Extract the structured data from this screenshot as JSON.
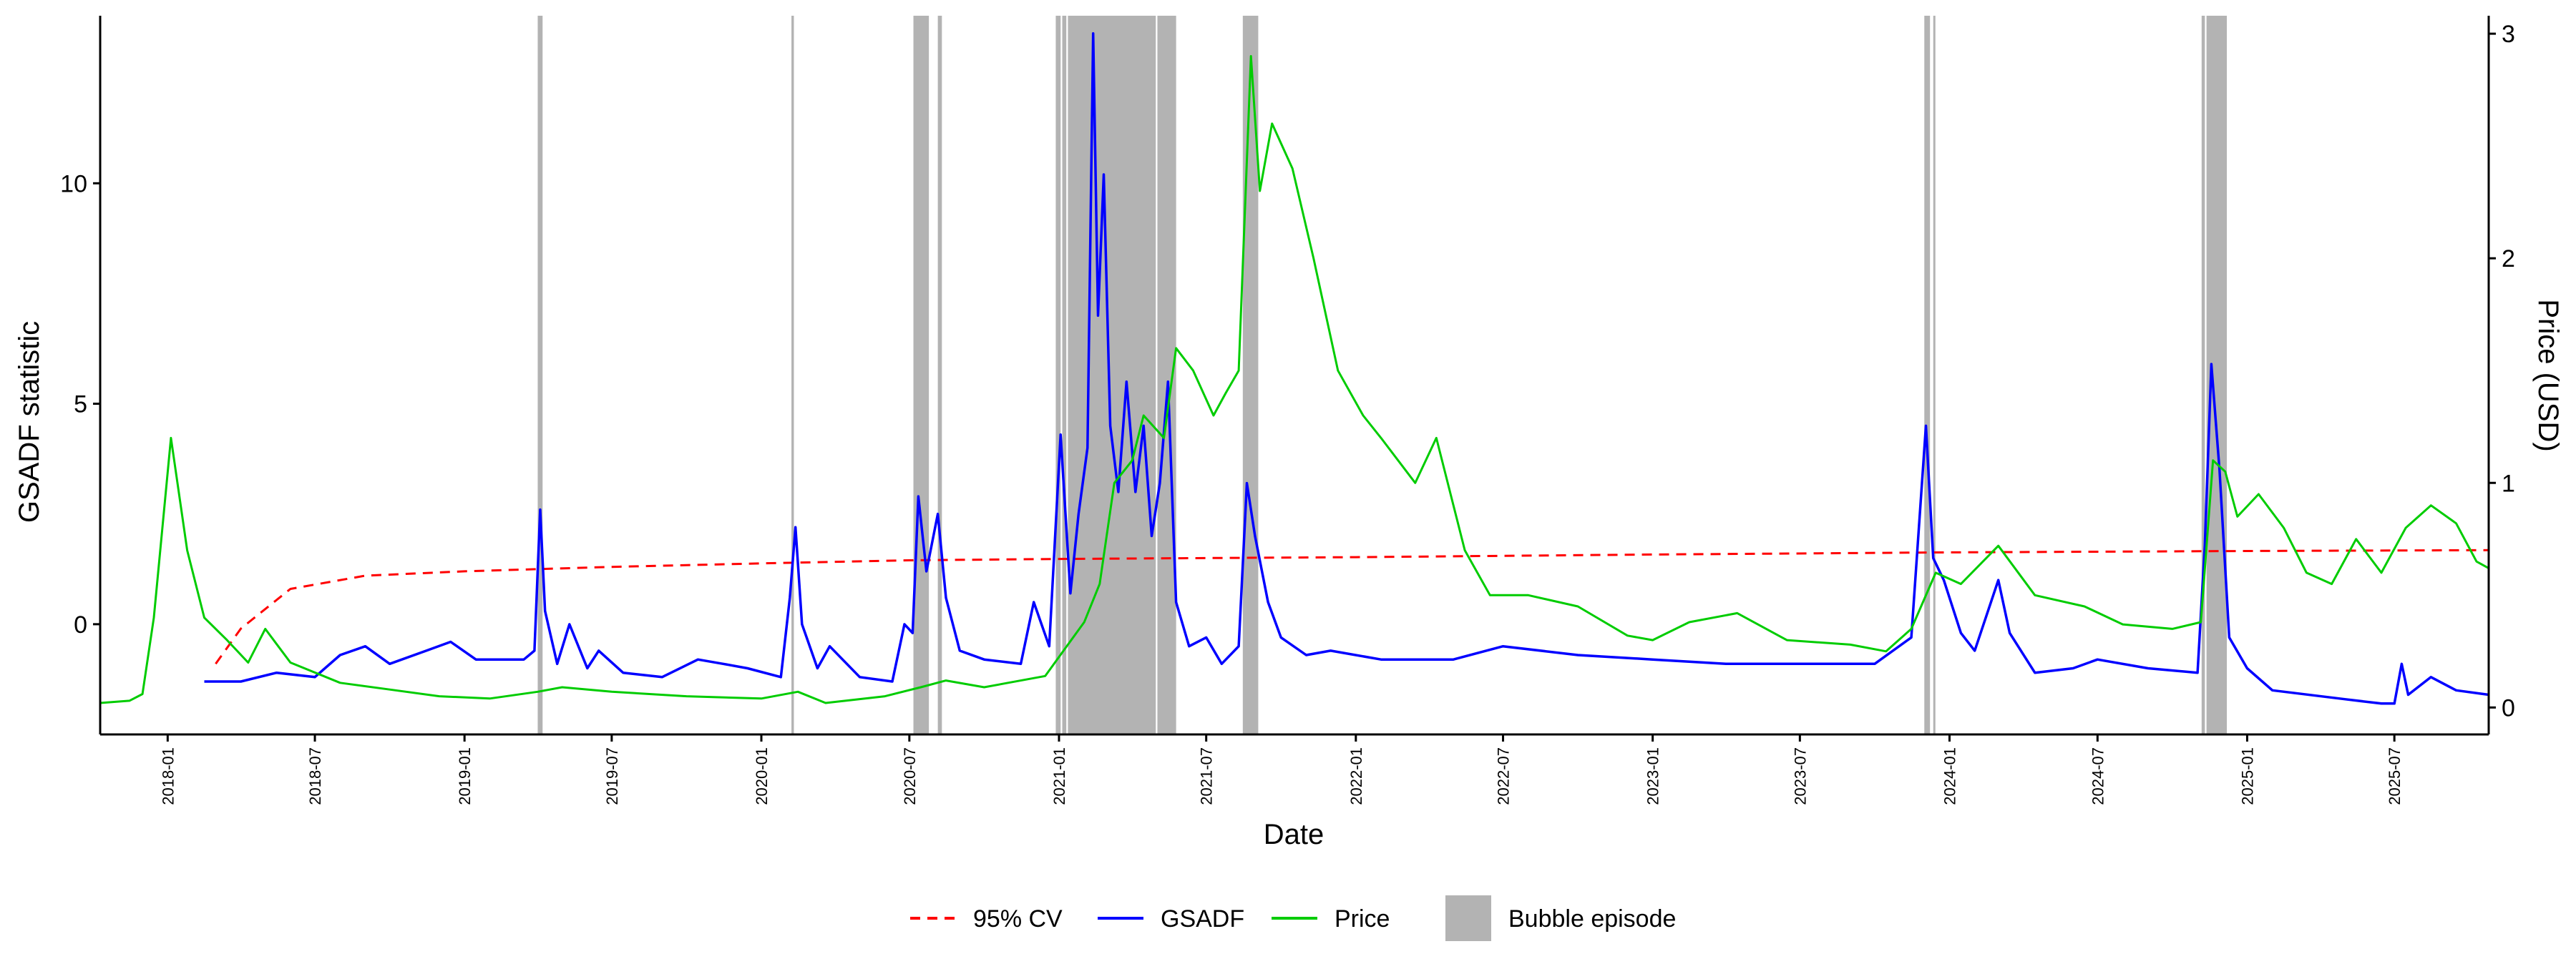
{
  "chart_data": {
    "type": "line",
    "title": "",
    "xlabel": "Date",
    "ylabel_left": "GSADF statistic",
    "ylabel_right": "Price (USD)",
    "x_range": [
      "2017-10-10",
      "2025-10-25"
    ],
    "ylim_left": [
      -2.5,
      13.8
    ],
    "ylim_right": [
      -0.12,
      3.08
    ],
    "left_ticks": [
      0,
      5,
      10
    ],
    "right_ticks": [
      0,
      1,
      2,
      3
    ],
    "x_ticks": [
      "2018-01",
      "2018-07",
      "2019-01",
      "2019-07",
      "2020-01",
      "2020-07",
      "2021-01",
      "2021-07",
      "2022-01",
      "2022-07",
      "2023-01",
      "2023-07",
      "2024-01",
      "2024-07",
      "2025-01",
      "2025-07"
    ],
    "grid": false,
    "legend": {
      "position": "bottom",
      "items": [
        {
          "label": "95% CV",
          "style": "dashed",
          "color": "#ff0000"
        },
        {
          "label": "GSADF",
          "style": "solid",
          "color": "#0000ff"
        },
        {
          "label": "Price",
          "style": "solid",
          "color": "#00cc00"
        },
        {
          "label": "Bubble episode",
          "style": "fill",
          "color": "#b3b3b3"
        }
      ]
    },
    "bubble_episodes": [
      [
        "2019-04-01",
        "2019-04-07"
      ],
      [
        "2020-02-07",
        "2020-02-10"
      ],
      [
        "2020-07-06",
        "2020-07-25"
      ],
      [
        "2020-08-05",
        "2020-08-10"
      ],
      [
        "2020-12-28",
        "2021-01-03"
      ],
      [
        "2021-01-05",
        "2021-01-10"
      ],
      [
        "2021-01-12",
        "2021-04-30"
      ],
      [
        "2021-05-02",
        "2021-05-25"
      ],
      [
        "2021-08-15",
        "2021-09-03"
      ],
      [
        "2023-12-01",
        "2023-12-08"
      ],
      [
        "2023-12-12",
        "2023-12-14"
      ],
      [
        "2024-11-06",
        "2024-11-10"
      ],
      [
        "2024-11-12",
        "2024-12-07"
      ]
    ],
    "series": [
      {
        "name": "95% CV",
        "axis": "left",
        "color": "#ff0000",
        "points": [
          [
            "2018-03-01",
            -0.9
          ],
          [
            "2018-04-01",
            -0.1
          ],
          [
            "2018-06-01",
            0.8
          ],
          [
            "2018-09-01",
            1.1
          ],
          [
            "2019-01-01",
            1.2
          ],
          [
            "2019-07-01",
            1.3
          ],
          [
            "2020-01-01",
            1.38
          ],
          [
            "2020-07-01",
            1.45
          ],
          [
            "2021-01-01",
            1.48
          ],
          [
            "2022-01-01",
            1.52
          ],
          [
            "2023-01-01",
            1.58
          ],
          [
            "2024-01-01",
            1.63
          ],
          [
            "2025-01-01",
            1.66
          ],
          [
            "2025-10-25",
            1.68
          ]
        ]
      },
      {
        "name": "GSADF",
        "axis": "left",
        "color": "#0000ff",
        "points": [
          [
            "2018-02-15",
            -1.3
          ],
          [
            "2018-04-01",
            -1.3
          ],
          [
            "2018-05-15",
            -1.1
          ],
          [
            "2018-07-01",
            -1.2
          ],
          [
            "2018-08-01",
            -0.7
          ],
          [
            "2018-09-01",
            -0.5
          ],
          [
            "2018-10-01",
            -0.9
          ],
          [
            "2018-11-15",
            -0.6
          ],
          [
            "2018-12-15",
            -0.4
          ],
          [
            "2019-01-15",
            -0.8
          ],
          [
            "2019-03-15",
            -0.8
          ],
          [
            "2019-03-28",
            -0.6
          ],
          [
            "2019-04-04",
            2.6
          ],
          [
            "2019-04-10",
            0.3
          ],
          [
            "2019-04-25",
            -0.9
          ],
          [
            "2019-05-10",
            0.0
          ],
          [
            "2019-06-01",
            -1.0
          ],
          [
            "2019-06-15",
            -0.6
          ],
          [
            "2019-07-15",
            -1.1
          ],
          [
            "2019-09-01",
            -1.2
          ],
          [
            "2019-10-15",
            -0.8
          ],
          [
            "2019-11-15",
            -0.9
          ],
          [
            "2019-12-15",
            -1.0
          ],
          [
            "2020-01-25",
            -1.2
          ],
          [
            "2020-02-05",
            0.6
          ],
          [
            "2020-02-12",
            2.2
          ],
          [
            "2020-02-20",
            0.0
          ],
          [
            "2020-03-10",
            -1.0
          ],
          [
            "2020-03-25",
            -0.5
          ],
          [
            "2020-05-01",
            -1.2
          ],
          [
            "2020-06-10",
            -1.3
          ],
          [
            "2020-06-25",
            0.0
          ],
          [
            "2020-07-05",
            -0.2
          ],
          [
            "2020-07-12",
            2.9
          ],
          [
            "2020-07-22",
            1.2
          ],
          [
            "2020-08-05",
            2.5
          ],
          [
            "2020-08-15",
            0.6
          ],
          [
            "2020-09-01",
            -0.6
          ],
          [
            "2020-10-01",
            -0.8
          ],
          [
            "2020-11-15",
            -0.9
          ],
          [
            "2020-12-01",
            0.5
          ],
          [
            "2020-12-20",
            -0.5
          ],
          [
            "2021-01-03",
            4.3
          ],
          [
            "2021-01-15",
            0.7
          ],
          [
            "2021-01-25",
            2.5
          ],
          [
            "2021-02-05",
            4.0
          ],
          [
            "2021-02-12",
            13.4
          ],
          [
            "2021-02-18",
            7.0
          ],
          [
            "2021-02-25",
            10.2
          ],
          [
            "2021-03-05",
            4.5
          ],
          [
            "2021-03-15",
            3.0
          ],
          [
            "2021-03-25",
            5.5
          ],
          [
            "2021-04-05",
            3.0
          ],
          [
            "2021-04-15",
            4.5
          ],
          [
            "2021-04-25",
            2.0
          ],
          [
            "2021-05-05",
            3.2
          ],
          [
            "2021-05-15",
            5.5
          ],
          [
            "2021-05-25",
            0.5
          ],
          [
            "2021-06-10",
            -0.5
          ],
          [
            "2021-07-01",
            -0.3
          ],
          [
            "2021-07-20",
            -0.9
          ],
          [
            "2021-08-10",
            -0.5
          ],
          [
            "2021-08-20",
            3.2
          ],
          [
            "2021-08-30",
            2.0
          ],
          [
            "2021-09-15",
            0.5
          ],
          [
            "2021-10-01",
            -0.3
          ],
          [
            "2021-11-01",
            -0.7
          ],
          [
            "2021-12-01",
            -0.6
          ],
          [
            "2022-02-01",
            -0.8
          ],
          [
            "2022-05-01",
            -0.8
          ],
          [
            "2022-07-01",
            -0.5
          ],
          [
            "2022-10-01",
            -0.7
          ],
          [
            "2023-01-01",
            -0.8
          ],
          [
            "2023-04-01",
            -0.9
          ],
          [
            "2023-07-01",
            -0.9
          ],
          [
            "2023-10-01",
            -0.9
          ],
          [
            "2023-11-15",
            -0.3
          ],
          [
            "2023-12-03",
            4.5
          ],
          [
            "2023-12-12",
            1.5
          ],
          [
            "2023-12-25",
            1.0
          ],
          [
            "2024-01-15",
            -0.2
          ],
          [
            "2024-02-01",
            -0.6
          ],
          [
            "2024-03-01",
            1.0
          ],
          [
            "2024-03-15",
            -0.2
          ],
          [
            "2024-04-15",
            -1.1
          ],
          [
            "2024-06-01",
            -1.0
          ],
          [
            "2024-07-01",
            -0.8
          ],
          [
            "2024-09-01",
            -1.0
          ],
          [
            "2024-11-01",
            -1.1
          ],
          [
            "2024-11-10",
            1.8
          ],
          [
            "2024-11-18",
            5.9
          ],
          [
            "2024-11-28",
            3.5
          ],
          [
            "2024-12-10",
            -0.3
          ],
          [
            "2025-01-01",
            -1.0
          ],
          [
            "2025-02-01",
            -1.5
          ],
          [
            "2025-05-01",
            -1.7
          ],
          [
            "2025-06-15",
            -1.8
          ],
          [
            "2025-07-01",
            -1.8
          ],
          [
            "2025-07-10",
            -0.9
          ],
          [
            "2025-07-18",
            -1.6
          ],
          [
            "2025-08-15",
            -1.2
          ],
          [
            "2025-09-15",
            -1.5
          ],
          [
            "2025-10-25",
            -1.6
          ]
        ]
      },
      {
        "name": "Price",
        "axis": "right",
        "color": "#00cc00",
        "points": [
          [
            "2017-10-10",
            0.02
          ],
          [
            "2017-11-15",
            0.03
          ],
          [
            "2017-12-01",
            0.06
          ],
          [
            "2017-12-15",
            0.4
          ],
          [
            "2018-01-05",
            1.2
          ],
          [
            "2018-01-25",
            0.7
          ],
          [
            "2018-02-15",
            0.4
          ],
          [
            "2018-03-15",
            0.3
          ],
          [
            "2018-04-10",
            0.2
          ],
          [
            "2018-05-01",
            0.35
          ],
          [
            "2018-06-01",
            0.2
          ],
          [
            "2018-08-01",
            0.11
          ],
          [
            "2018-10-01",
            0.08
          ],
          [
            "2018-12-01",
            0.05
          ],
          [
            "2019-02-01",
            0.04
          ],
          [
            "2019-04-01",
            0.07
          ],
          [
            "2019-05-01",
            0.09
          ],
          [
            "2019-07-01",
            0.07
          ],
          [
            "2019-10-01",
            0.05
          ],
          [
            "2020-01-01",
            0.04
          ],
          [
            "2020-02-15",
            0.07
          ],
          [
            "2020-03-20",
            0.02
          ],
          [
            "2020-06-01",
            0.05
          ],
          [
            "2020-07-15",
            0.09
          ],
          [
            "2020-08-15",
            0.12
          ],
          [
            "2020-10-01",
            0.09
          ],
          [
            "2020-12-15",
            0.14
          ],
          [
            "2021-01-10",
            0.27
          ],
          [
            "2021-02-01",
            0.38
          ],
          [
            "2021-02-20",
            0.55
          ],
          [
            "2021-03-10",
            1.0
          ],
          [
            "2021-04-01",
            1.1
          ],
          [
            "2021-04-15",
            1.3
          ],
          [
            "2021-05-10",
            1.2
          ],
          [
            "2021-05-25",
            1.6
          ],
          [
            "2021-06-15",
            1.5
          ],
          [
            "2021-07-10",
            1.3
          ],
          [
            "2021-07-25",
            1.4
          ],
          [
            "2021-08-10",
            1.5
          ],
          [
            "2021-08-25",
            2.9
          ],
          [
            "2021-09-05",
            2.3
          ],
          [
            "2021-09-20",
            2.6
          ],
          [
            "2021-10-15",
            2.4
          ],
          [
            "2021-11-10",
            2.0
          ],
          [
            "2021-12-10",
            1.5
          ],
          [
            "2022-01-10",
            1.3
          ],
          [
            "2022-02-01",
            1.2
          ],
          [
            "2022-03-15",
            1.0
          ],
          [
            "2022-04-10",
            1.2
          ],
          [
            "2022-05-15",
            0.7
          ],
          [
            "2022-06-15",
            0.5
          ],
          [
            "2022-08-01",
            0.5
          ],
          [
            "2022-10-01",
            0.45
          ],
          [
            "2022-12-01",
            0.32
          ],
          [
            "2023-01-01",
            0.3
          ],
          [
            "2023-02-15",
            0.38
          ],
          [
            "2023-04-15",
            0.42
          ],
          [
            "2023-06-15",
            0.3
          ],
          [
            "2023-09-01",
            0.28
          ],
          [
            "2023-10-15",
            0.25
          ],
          [
            "2023-11-15",
            0.35
          ],
          [
            "2023-12-15",
            0.6
          ],
          [
            "2024-01-15",
            0.55
          ],
          [
            "2024-03-01",
            0.72
          ],
          [
            "2024-04-15",
            0.5
          ],
          [
            "2024-06-15",
            0.45
          ],
          [
            "2024-08-01",
            0.37
          ],
          [
            "2024-10-01",
            0.35
          ],
          [
            "2024-11-05",
            0.38
          ],
          [
            "2024-11-20",
            1.1
          ],
          [
            "2024-12-05",
            1.05
          ],
          [
            "2024-12-20",
            0.85
          ],
          [
            "2025-01-15",
            0.95
          ],
          [
            "2025-02-15",
            0.8
          ],
          [
            "2025-03-15",
            0.6
          ],
          [
            "2025-04-15",
            0.55
          ],
          [
            "2025-05-15",
            0.75
          ],
          [
            "2025-06-15",
            0.6
          ],
          [
            "2025-07-15",
            0.8
          ],
          [
            "2025-08-15",
            0.9
          ],
          [
            "2025-09-15",
            0.82
          ],
          [
            "2025-10-10",
            0.65
          ],
          [
            "2025-10-25",
            0.62
          ]
        ]
      }
    ]
  }
}
